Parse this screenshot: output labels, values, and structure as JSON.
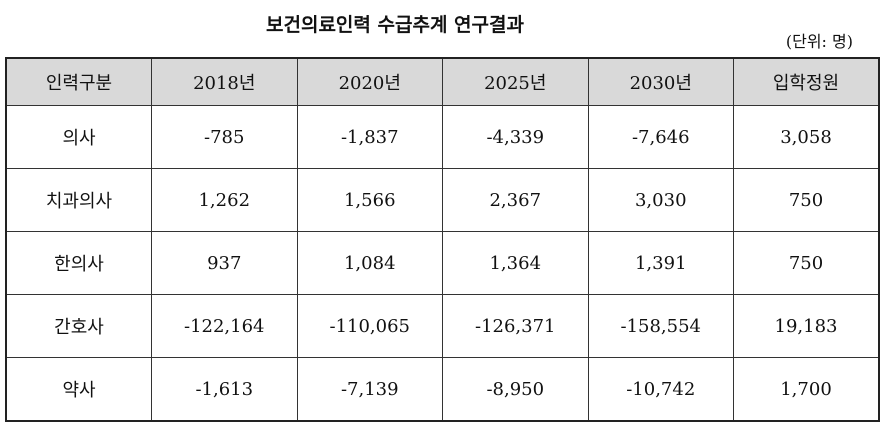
{
  "title": "보건의료인력 수급추계 연구결과",
  "unit": "(단위: 명)",
  "table": {
    "header": [
      "인력구분",
      "2018년",
      "2020년",
      "2025년",
      "2030년",
      "입학정원"
    ],
    "rows": [
      [
        "의사",
        "-785",
        "-1,837",
        "-4,339",
        "-7,646",
        "3,058"
      ],
      [
        "치과의사",
        "1,262",
        "1,566",
        "2,367",
        "3,030",
        "750"
      ],
      [
        "한의사",
        "937",
        "1,084",
        "1,364",
        "1,391",
        "750"
      ],
      [
        "간호사",
        "-122,164",
        "-110,065",
        "-126,371",
        "-158,554",
        "19,183"
      ],
      [
        "약사",
        "-1,613",
        "-7,139",
        "-8,950",
        "-10,742",
        "1,700"
      ]
    ]
  }
}
